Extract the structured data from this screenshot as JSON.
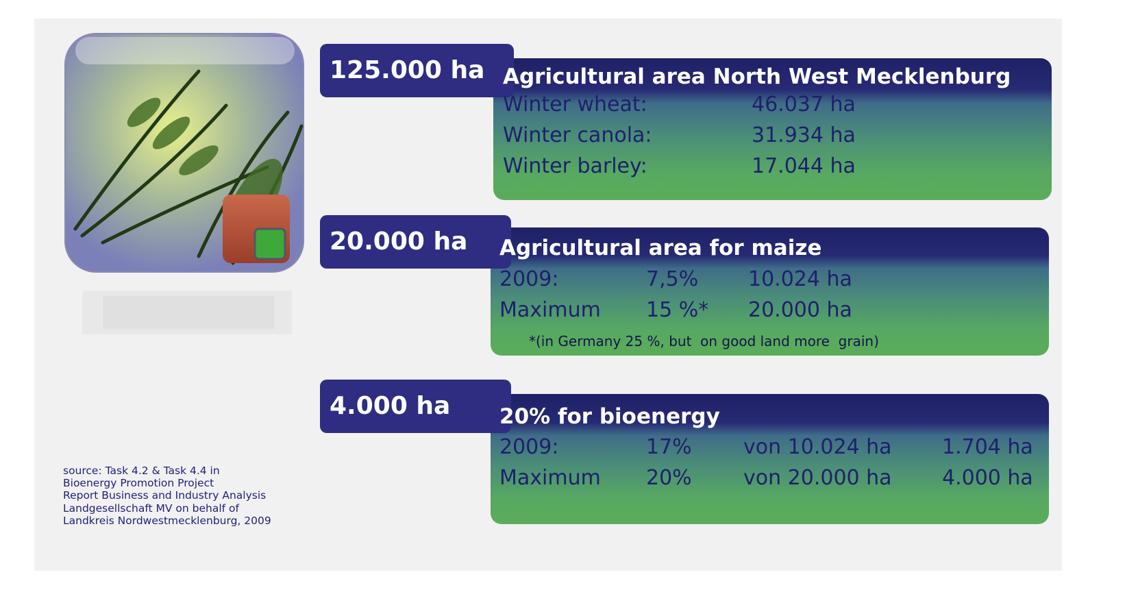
{
  "blocks": [
    {
      "total": "125.000 ha",
      "title": "Agricultural area North West Mecklenburg",
      "rows": [
        [
          "Winter wheat:",
          "46.037 ha"
        ],
        [
          "Winter canola:",
          "31.934 ha"
        ],
        [
          "Winter barley:",
          "17.044 ha"
        ]
      ]
    },
    {
      "total": "20.000 ha",
      "title": "Agricultural area for maize",
      "rows": [
        [
          "2009:",
          "7,5%",
          "10.024 ha"
        ],
        [
          "Maximum",
          "15 %*",
          "20.000 ha"
        ]
      ],
      "note": "*(in Germany 25 %, but  on good land more  grain)"
    },
    {
      "total": "4.000 ha",
      "title": "20% for bioenergy",
      "rows": [
        [
          "2009:",
          "17%",
          "von 10.024 ha",
          "1.704 ha"
        ],
        [
          "Maximum",
          "20%",
          "von 20.000 ha",
          "4.000 ha"
        ]
      ]
    }
  ],
  "source": [
    "source: Task 4.2 & Task 4.4 in",
    "Bioenergy Promotion Project",
    "Report Business and Industry Analysis",
    "Landgesellschaft MV on behalf of",
    "Landkreis Nordwestmecklenburg, 2009"
  ]
}
